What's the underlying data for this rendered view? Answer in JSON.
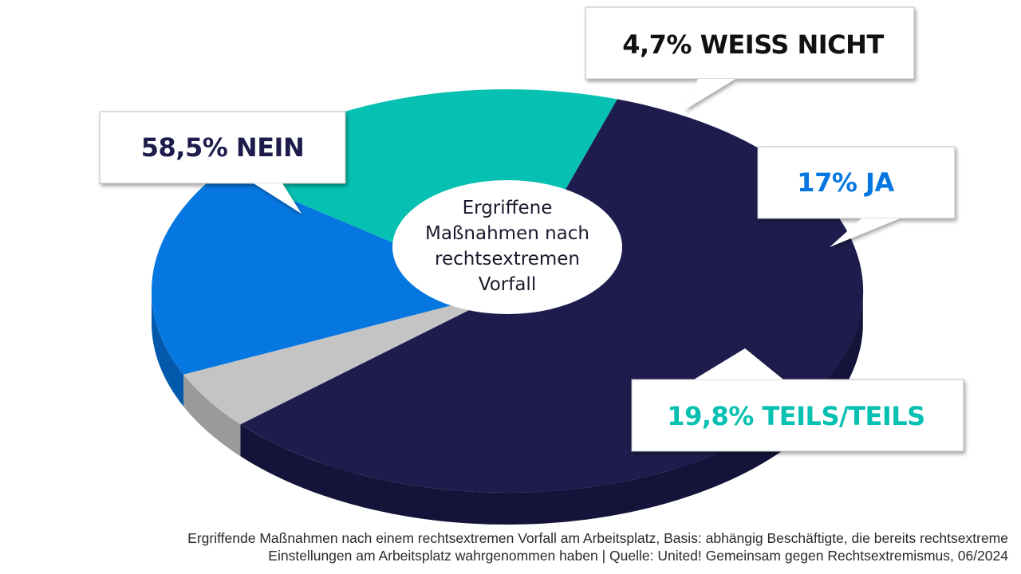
{
  "chart_data": {
    "type": "pie",
    "title": "Ergriffene Maßnahmen nach rechtsextremen Vorfall",
    "slices": [
      {
        "label": "NEIN",
        "value": 58.5,
        "value_label": "58,5%",
        "color": "#1d1c4c",
        "side_color": "#14143a"
      },
      {
        "label": "WEISS NICHT",
        "value": 4.7,
        "value_label": "4,7%",
        "color": "#c4c4c4",
        "side_color": "#9a9a9a"
      },
      {
        "label": "JA",
        "value": 17,
        "value_label": "17%",
        "color": "#0677e0",
        "side_color": "#0459ad"
      },
      {
        "label": "TEILS/TEILS",
        "value": 19.8,
        "value_label": "19,8%",
        "color": "#06c0b1",
        "side_color": "#04958a"
      }
    ]
  },
  "callouts": [
    {
      "text": "58,5% NEIN",
      "color": "#1d1c4c"
    },
    {
      "text": "4,7% WEISS NICHT",
      "color": "#111111"
    },
    {
      "text": "17% JA",
      "color": "#0677e0"
    },
    {
      "text": "19,8% TEILS/TEILS",
      "color": "#06c0b1"
    }
  ],
  "center_title_lines": [
    "Ergriffene",
    "Maßnahmen nach",
    "rechtsextremen",
    "Vorfall"
  ],
  "caption": {
    "line1": "Ergriffende Maßnahmen nach einem rechtsextremen Vorfall am Arbeitsplatz, Basis: abhängig Beschäftigte, die bereits rechtsextreme",
    "line2": "Einstellungen am Arbeitsplatz wahrgenommen haben | Quelle: United! Gemeinsam gegen Rechtsextremismus, 06/2024"
  }
}
